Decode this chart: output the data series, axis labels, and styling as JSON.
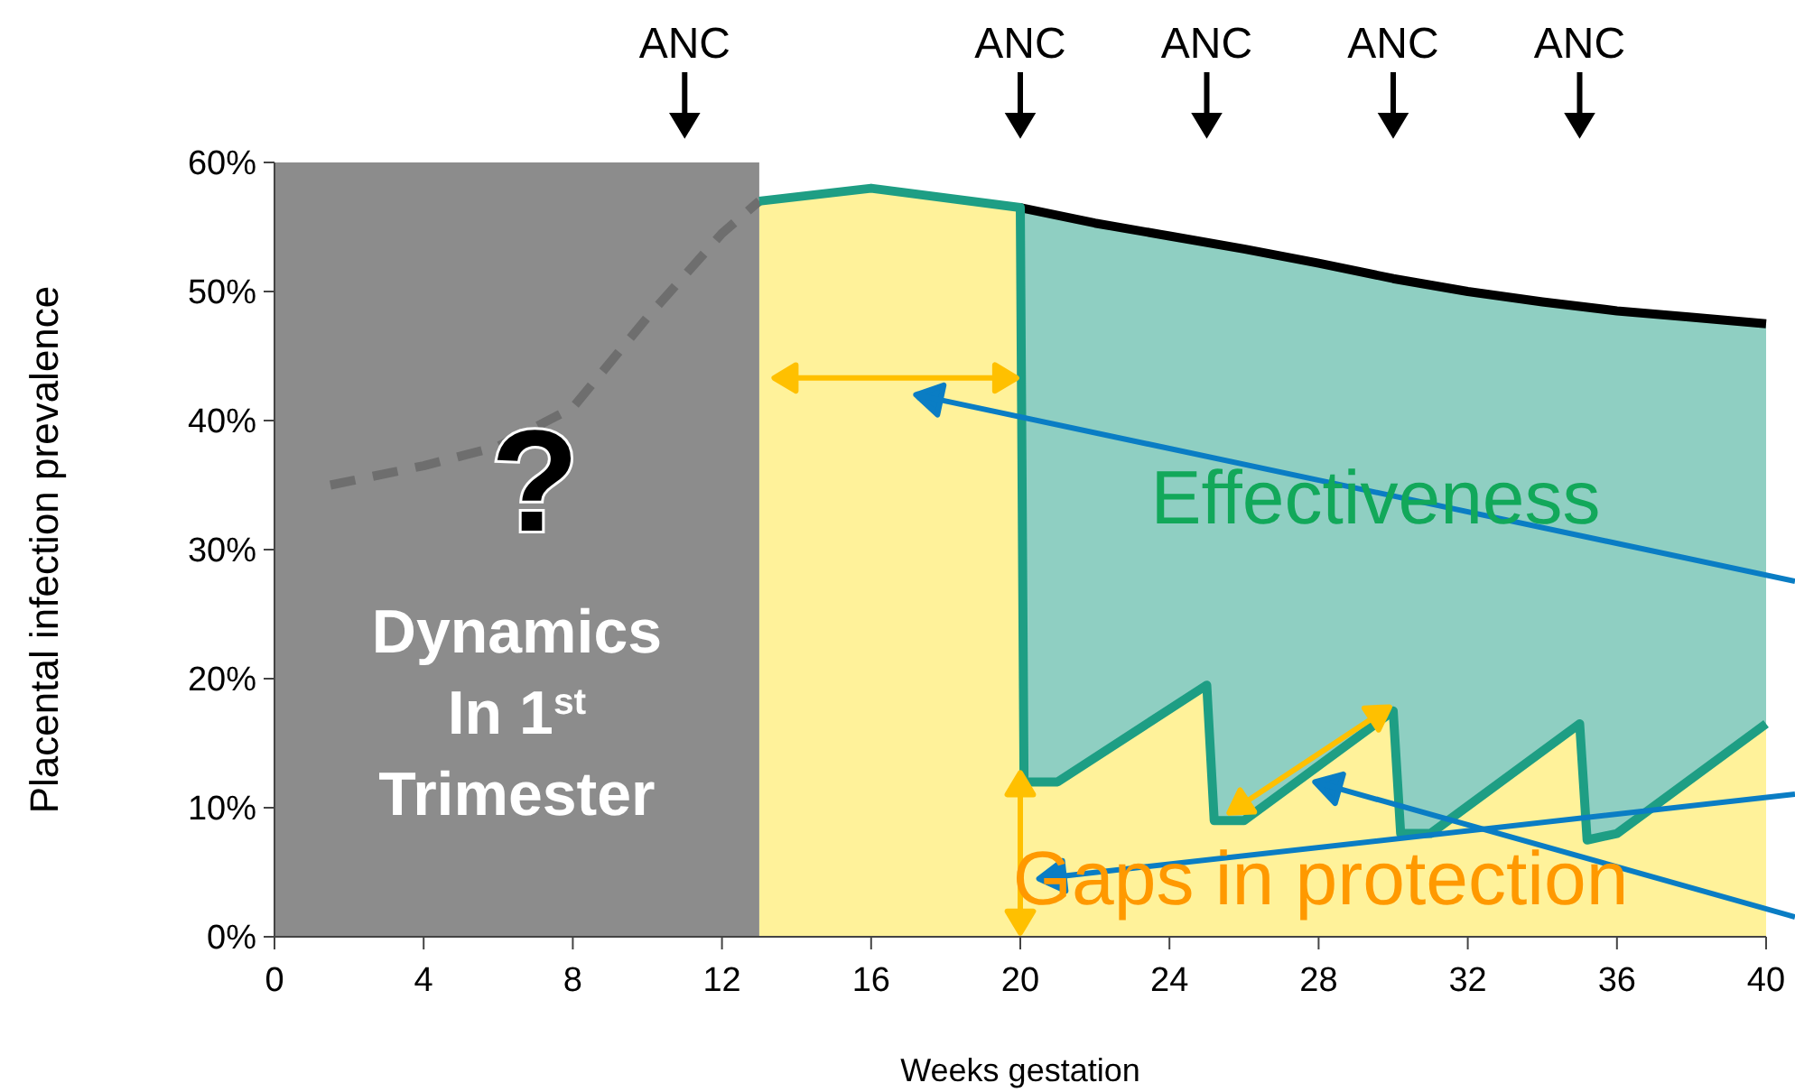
{
  "chart_data": {
    "type": "line",
    "xlabel": "Weeks gestation",
    "ylabel": "Placental infection prevalence",
    "xlim": [
      0,
      40
    ],
    "xticks": [
      0,
      4,
      8,
      12,
      16,
      20,
      24,
      28,
      32,
      36,
      40
    ],
    "ylim": [
      0,
      60
    ],
    "yticks": [
      {
        "value": 0,
        "label": "0%"
      },
      {
        "value": 10,
        "label": "10%"
      },
      {
        "value": 20,
        "label": "20%"
      },
      {
        "value": 30,
        "label": "30%"
      },
      {
        "value": 40,
        "label": "40%"
      },
      {
        "value": 50,
        "label": "50%"
      },
      {
        "value": 60,
        "label": "60%"
      }
    ],
    "series": [
      {
        "type": "area",
        "color": "#fff29a",
        "x": [
          13,
          16,
          20,
          20.1,
          21,
          25,
          25.2,
          26,
          30,
          30.2,
          31,
          35,
          35.2,
          36,
          40
        ],
        "values": [
          57,
          58,
          56.5,
          12,
          12,
          19.5,
          9,
          9,
          17.5,
          8,
          8,
          16.5,
          7.5,
          8,
          16.5
        ]
      },
      {
        "color": "#6e6e6e",
        "line_style": "dashed",
        "x": [
          1.5,
          4,
          6,
          8,
          10,
          12,
          13
        ],
        "values": [
          35,
          36.5,
          38,
          41,
          48,
          54.5,
          57
        ]
      },
      {
        "color": "#000000",
        "x": [
          20,
          22,
          24,
          26,
          28,
          30,
          32,
          34,
          36,
          38,
          40
        ],
        "values": [
          56.5,
          55.3,
          54.3,
          53.3,
          52.2,
          51,
          50,
          49.2,
          48.5,
          48,
          47.5
        ]
      },
      {
        "color": "#1e9e84",
        "x": [
          13,
          16,
          20,
          20.1,
          21,
          25,
          25.2,
          26,
          30,
          30.2,
          31,
          35,
          35.2,
          36,
          40
        ],
        "values": [
          57,
          58,
          56.5,
          12,
          12,
          19.5,
          9,
          9,
          17.5,
          8,
          8,
          16.5,
          7.5,
          8,
          16.5
        ],
        "lower": [
          null,
          null,
          56.5,
          12,
          12,
          19.5,
          9,
          9,
          17.5,
          8,
          8,
          16.5,
          7.5,
          8,
          16.5
        ],
        "upper": [
          null,
          null,
          56.5,
          56.5,
          56,
          54,
          54,
          53.3,
          51,
          51,
          50.5,
          49,
          49,
          48.5,
          47.5
        ]
      }
    ],
    "bands": [
      {
        "axis": "x",
        "from": 0,
        "to": 13,
        "label": "Dynamics\nIn 1$^{st}$\nTrimester",
        "color": "#8c8c8c"
      }
    ],
    "annotations": [
      "ANC",
      "ANC",
      "ANC",
      "ANC",
      "ANC",
      "?",
      "Effectiveness",
      "Gaps in protection"
    ]
  }
}
